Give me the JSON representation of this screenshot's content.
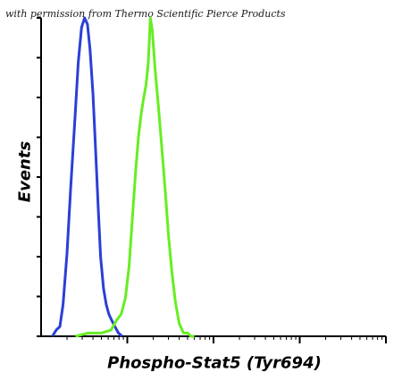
{
  "credit": "with permission from Thermo Scientific Pierce Products",
  "chart_data": {
    "type": "line",
    "title": "",
    "xlabel": "Phospho-Stat5 (Tyr694)",
    "ylabel": "Events",
    "x_scale": "log",
    "xlim": [
      1,
      10000
    ],
    "ylim": [
      0,
      100
    ],
    "grid": false,
    "legend": "none",
    "y_ticks": [
      0,
      12.5,
      25,
      37.5,
      50,
      62.5,
      75,
      87.5,
      100
    ],
    "series": [
      {
        "color": "#2b3fd6",
        "x": [
          1.35,
          1.5,
          1.65,
          1.8,
          2.0,
          2.2,
          2.45,
          2.7,
          2.95,
          3.2,
          3.45,
          3.7,
          4.0,
          4.3,
          4.6,
          4.9,
          5.3,
          5.7,
          6.1,
          6.6,
          7.2,
          7.9,
          8.7
        ],
        "y": [
          0,
          2,
          3,
          10,
          26,
          46,
          67,
          86,
          97,
          100,
          98,
          90,
          76,
          58,
          40,
          25,
          15,
          10,
          7,
          5,
          3,
          1,
          0
        ]
      },
      {
        "color": "#66ee22",
        "x": [
          2.5,
          3.5,
          5.0,
          6.5,
          7.5,
          8.5,
          9.5,
          10.5,
          11.5,
          12.5,
          13.5,
          14.5,
          15.5,
          16.5,
          17.5,
          18.5,
          19.5,
          21,
          23,
          25,
          27.5,
          30,
          33,
          36,
          40,
          45,
          50,
          55,
          60
        ],
        "y": [
          0,
          1,
          1,
          2,
          5,
          7,
          12,
          22,
          38,
          52,
          63,
          70,
          75,
          79,
          86,
          100,
          96,
          84,
          72,
          60,
          46,
          32,
          20,
          11,
          4,
          1,
          1,
          0,
          0
        ]
      }
    ]
  }
}
